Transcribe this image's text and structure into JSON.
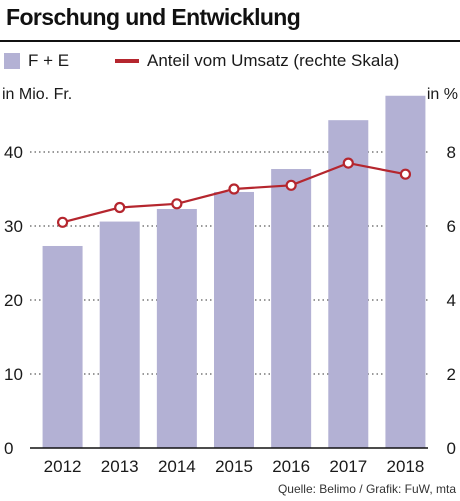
{
  "header": {
    "title": "Forschung und Entwicklung"
  },
  "legend": {
    "bar_label": "F + E",
    "line_label": "Anteil vom Umsatz (rechte Skala)"
  },
  "axes": {
    "left_unit": "in Mio. Fr.",
    "right_unit": "in %"
  },
  "colors": {
    "bar": "#b3b1d4",
    "line": "#b5262e",
    "grid": "#333333"
  },
  "source": "Quelle: Belimo / Grafik: FuW, mta",
  "chart_data": {
    "type": "bar",
    "title": "Forschung und Entwicklung",
    "categories": [
      "2012",
      "2013",
      "2014",
      "2015",
      "2016",
      "2017",
      "2018"
    ],
    "series": [
      {
        "name": "F + E",
        "type": "bar",
        "axis": "left",
        "values": [
          27.3,
          30.6,
          32.3,
          34.6,
          37.7,
          44.3,
          47.6
        ]
      },
      {
        "name": "Anteil vom Umsatz (rechte Skala)",
        "type": "line",
        "axis": "right",
        "values": [
          6.1,
          6.5,
          6.6,
          7.0,
          7.1,
          7.7,
          7.4
        ]
      }
    ],
    "ylim_left": [
      0,
      50
    ],
    "yticks_left": [
      "0",
      "10",
      "20",
      "30",
      "40"
    ],
    "yticks_left_values": [
      0,
      10,
      20,
      30,
      40
    ],
    "ylim_right": [
      0,
      10
    ],
    "yticks_right": [
      "0",
      "2",
      "4",
      "6",
      "8"
    ],
    "yticks_right_values": [
      0,
      2,
      4,
      6,
      8
    ],
    "ylabel_left": "in Mio. Fr.",
    "ylabel_right": "in %",
    "grid": "dotted-horizontal",
    "legend_position": "top-left"
  }
}
